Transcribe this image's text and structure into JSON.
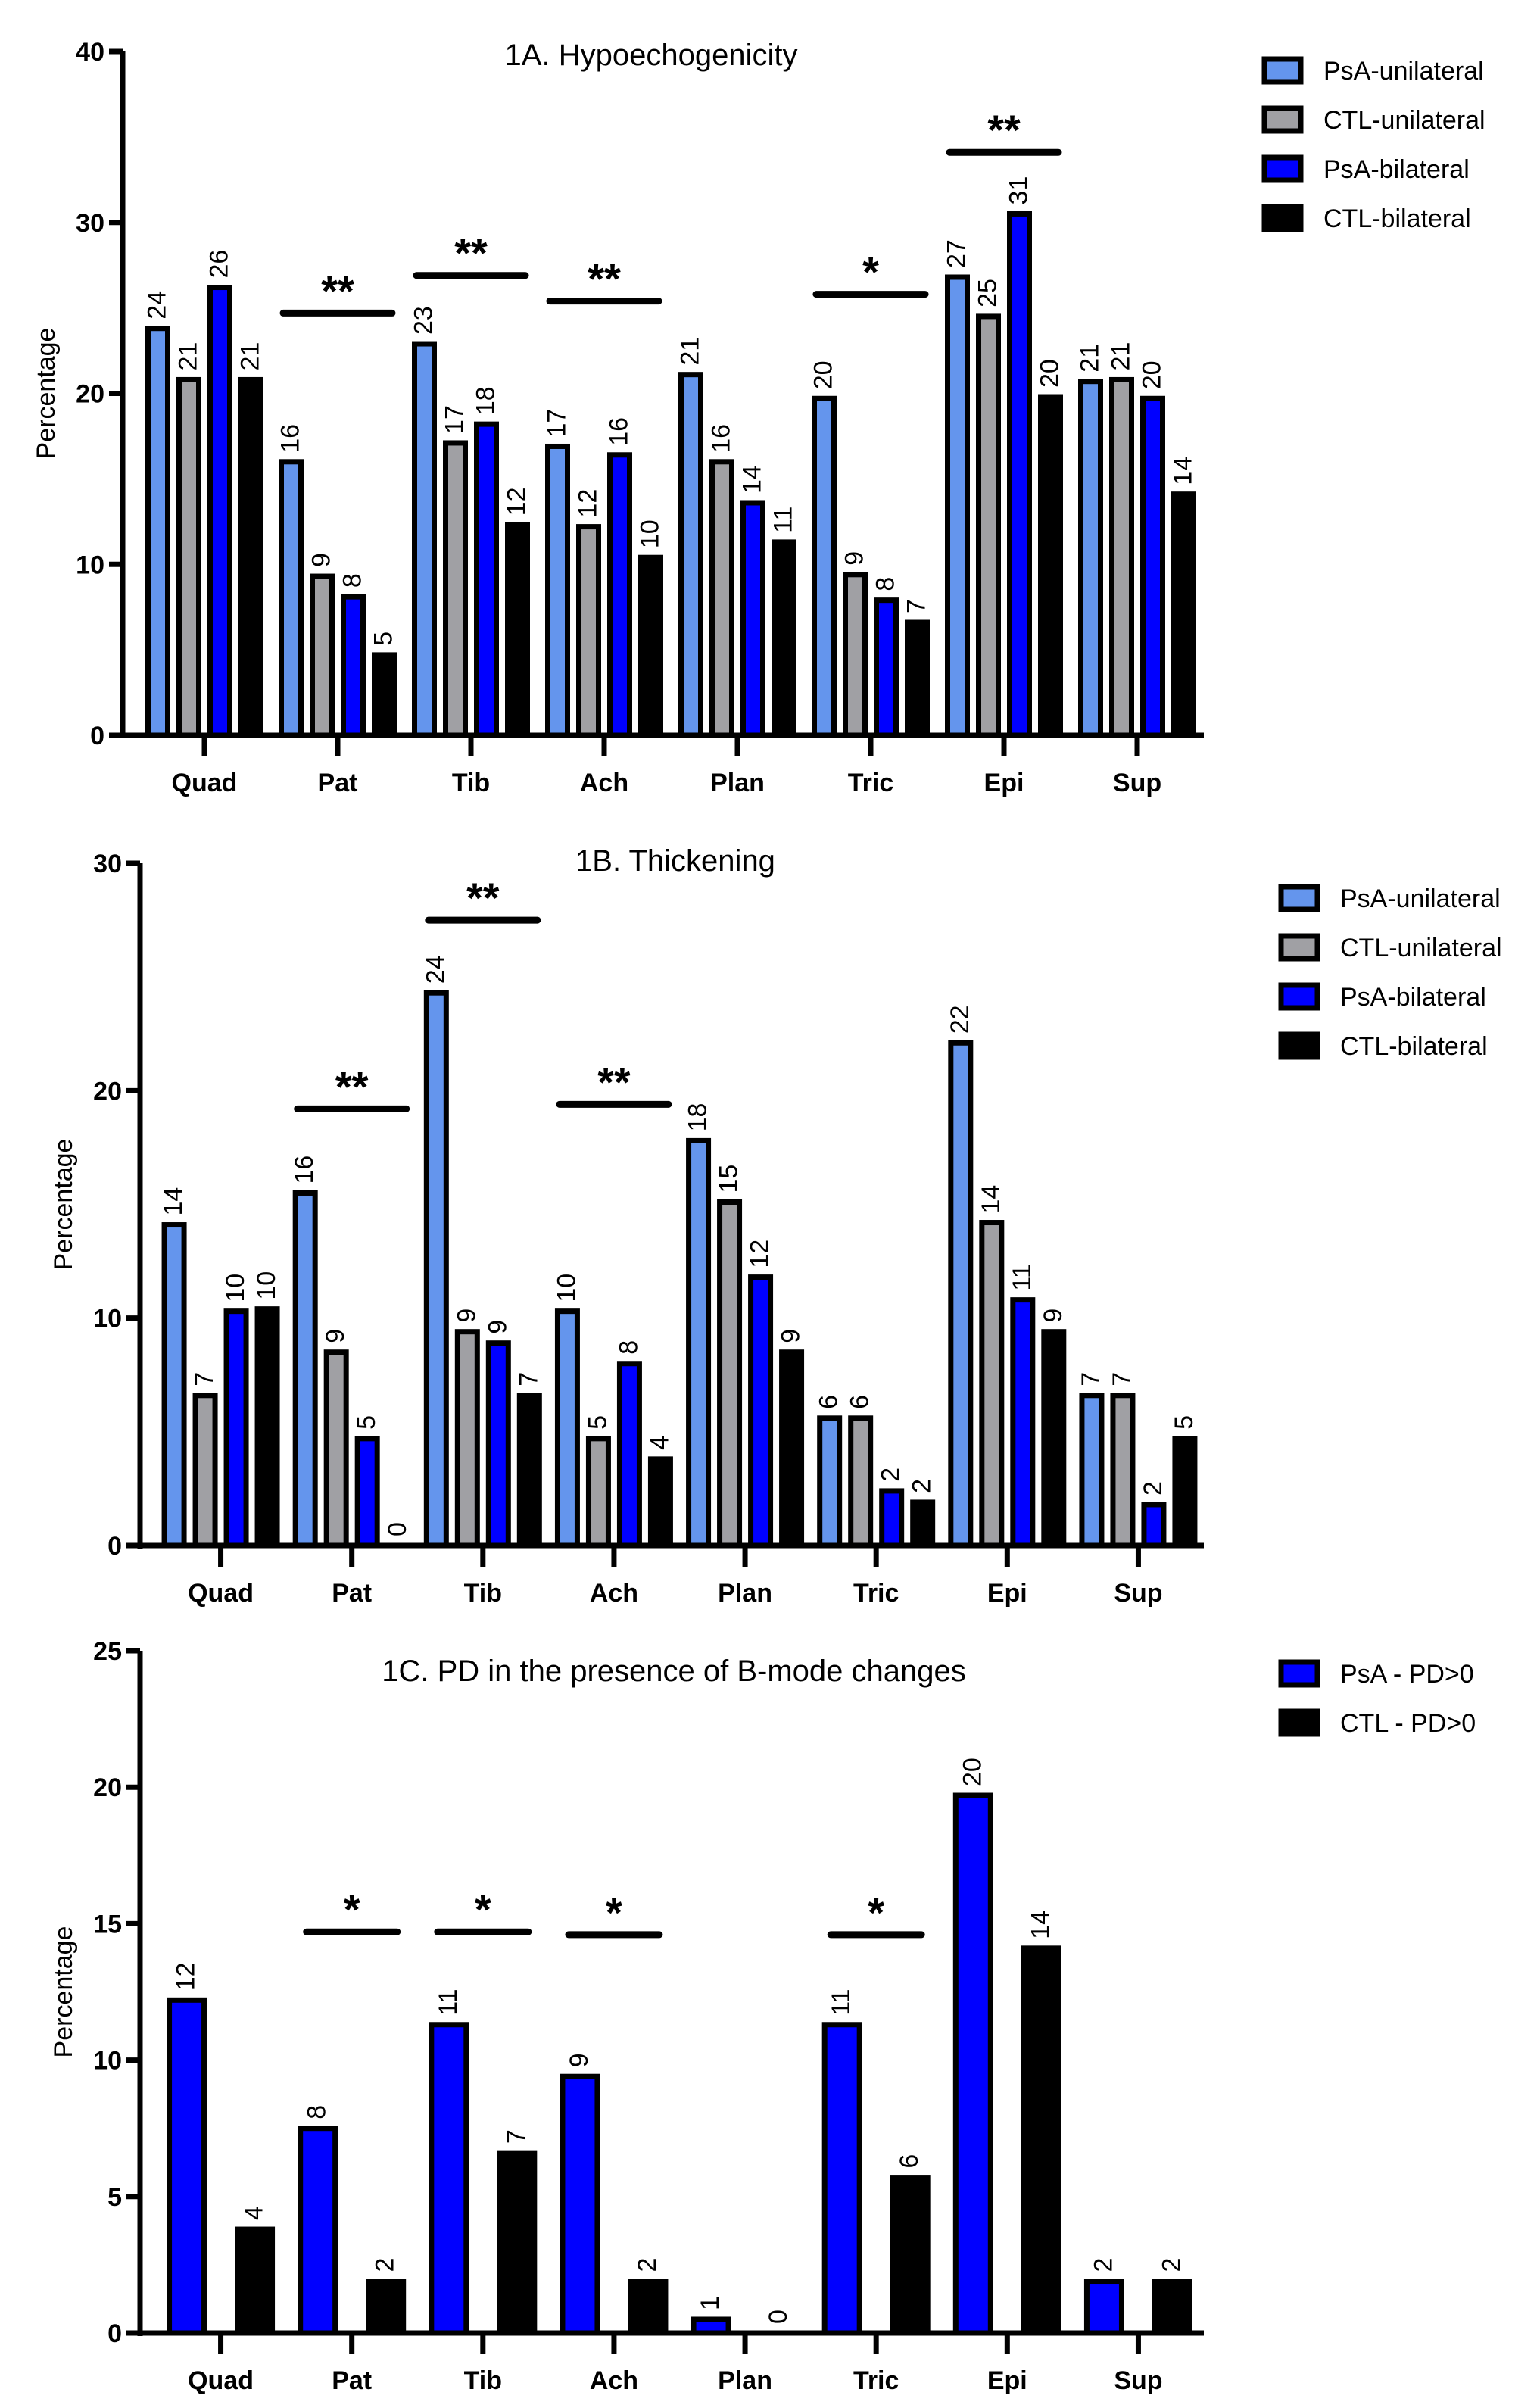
{
  "chart_data": [
    {
      "type": "bar",
      "id": "1A",
      "title": "1A. Hypoechogenicity",
      "xlabel": "",
      "ylabel": "Percentage",
      "ylim": [
        0,
        40
      ],
      "yticks": [
        0,
        10,
        20,
        30,
        40
      ],
      "grid": false,
      "legend_position": "top-right",
      "categories": [
        "Quad",
        "Pat",
        "Tib",
        "Ach",
        "Plan",
        "Tric",
        "Epi",
        "Sup"
      ],
      "series": [
        {
          "name": "PsA-unilateral",
          "color": "#6495ED",
          "values": [
            23.8,
            16.0,
            22.9,
            16.9,
            21.1,
            19.7,
            26.8,
            20.7
          ],
          "labels": [
            "24",
            "16",
            "23",
            "17",
            "21",
            "20",
            "27",
            "21"
          ]
        },
        {
          "name": "CTL-unilateral",
          "color": "#A0A0A4",
          "values": [
            20.8,
            9.3,
            17.1,
            12.2,
            16.0,
            9.4,
            24.5,
            20.8
          ],
          "labels": [
            "21",
            "9",
            "17",
            "12",
            "16",
            "9",
            "25",
            "21"
          ]
        },
        {
          "name": "PsA-bilateral",
          "color": "#0000FF",
          "values": [
            26.2,
            8.1,
            18.2,
            16.4,
            13.6,
            7.9,
            30.5,
            19.7
          ],
          "labels": [
            "26",
            "8",
            "18",
            "16",
            "14",
            "8",
            "31",
            "20"
          ]
        },
        {
          "name": "CTL-bilateral",
          "color": "#000000",
          "values": [
            20.8,
            4.7,
            12.3,
            10.4,
            11.3,
            6.6,
            19.8,
            14.1
          ],
          "labels": [
            "21",
            "5",
            "12",
            "10",
            "11",
            "7",
            "20",
            "14"
          ]
        }
      ],
      "significance": [
        {
          "category": "Pat",
          "marker": "**",
          "y": 24.7
        },
        {
          "category": "Tib",
          "marker": "**",
          "y": 26.9
        },
        {
          "category": "Ach",
          "marker": "**",
          "y": 25.4
        },
        {
          "category": "Tric",
          "marker": "*",
          "y": 25.8
        },
        {
          "category": "Epi",
          "marker": "**",
          "y": 34.1
        }
      ]
    },
    {
      "type": "bar",
      "id": "1B",
      "title": "1B. Thickening",
      "xlabel": "",
      "ylabel": "Percentage",
      "ylim": [
        0,
        30
      ],
      "yticks": [
        0,
        10,
        20,
        30
      ],
      "grid": false,
      "legend_position": "top-right",
      "categories": [
        "Quad",
        "Pat",
        "Tib",
        "Ach",
        "Plan",
        "Tric",
        "Epi",
        "Sup"
      ],
      "series": [
        {
          "name": "PsA-unilateral",
          "color": "#6495ED",
          "values": [
            14.1,
            15.5,
            24.3,
            10.3,
            17.8,
            5.6,
            22.1,
            6.6
          ],
          "labels": [
            "14",
            "16",
            "24",
            "10",
            "18",
            "6",
            "22",
            "7"
          ]
        },
        {
          "name": "CTL-unilateral",
          "color": "#A0A0A4",
          "values": [
            6.6,
            8.5,
            9.4,
            4.7,
            15.1,
            5.6,
            14.2,
            6.6
          ],
          "labels": [
            "7",
            "9",
            "9",
            "5",
            "15",
            "6",
            "14",
            "7"
          ]
        },
        {
          "name": "PsA-bilateral",
          "color": "#0000FF",
          "values": [
            10.3,
            4.7,
            8.9,
            8.0,
            11.8,
            2.4,
            10.8,
            1.8
          ],
          "labels": [
            "10",
            "5",
            "9",
            "8",
            "12",
            "2",
            "11",
            "2"
          ]
        },
        {
          "name": "CTL-bilateral",
          "color": "#000000",
          "values": [
            10.4,
            0,
            6.6,
            3.8,
            8.5,
            1.9,
            9.4,
            4.7
          ],
          "labels": [
            "10",
            "0",
            "7",
            "4",
            "9",
            "2",
            "9",
            "5"
          ]
        }
      ],
      "significance": [
        {
          "category": "Pat",
          "marker": "**",
          "y": 19.2
        },
        {
          "category": "Tib",
          "marker": "**",
          "y": 27.5
        },
        {
          "category": "Ach",
          "marker": "**",
          "y": 19.4
        }
      ]
    },
    {
      "type": "bar",
      "id": "1C",
      "title": "1C. PD in the presence of B-mode changes",
      "xlabel": "",
      "ylabel": "Percentage",
      "ylim": [
        0,
        25
      ],
      "yticks": [
        0,
        5,
        10,
        15,
        20,
        25
      ],
      "grid": false,
      "legend_position": "top-right",
      "categories": [
        "Quad",
        "Pat",
        "Tib",
        "Ach",
        "Plan",
        "Tric",
        "Epi",
        "Sup"
      ],
      "series": [
        {
          "name": "PsA - PD>0",
          "color": "#0000FF",
          "values": [
            12.2,
            7.5,
            11.3,
            9.4,
            0.5,
            11.3,
            19.7,
            1.9
          ],
          "labels": [
            "12",
            "8",
            "11",
            "9",
            "1",
            "11",
            "20",
            "2"
          ]
        },
        {
          "name": "CTL - PD>0",
          "color": "#000000",
          "values": [
            3.8,
            1.9,
            6.6,
            1.9,
            0,
            5.7,
            14.1,
            1.9
          ],
          "labels": [
            "4",
            "2",
            "7",
            "2",
            "0",
            "6",
            "14",
            "2"
          ]
        }
      ],
      "significance": [
        {
          "category": "Pat",
          "marker": "*",
          "y": 14.7
        },
        {
          "category": "Tib",
          "marker": "*",
          "y": 14.7
        },
        {
          "category": "Ach",
          "marker": "*",
          "y": 14.6
        },
        {
          "category": "Tric",
          "marker": "*",
          "y": 14.6
        }
      ]
    }
  ]
}
